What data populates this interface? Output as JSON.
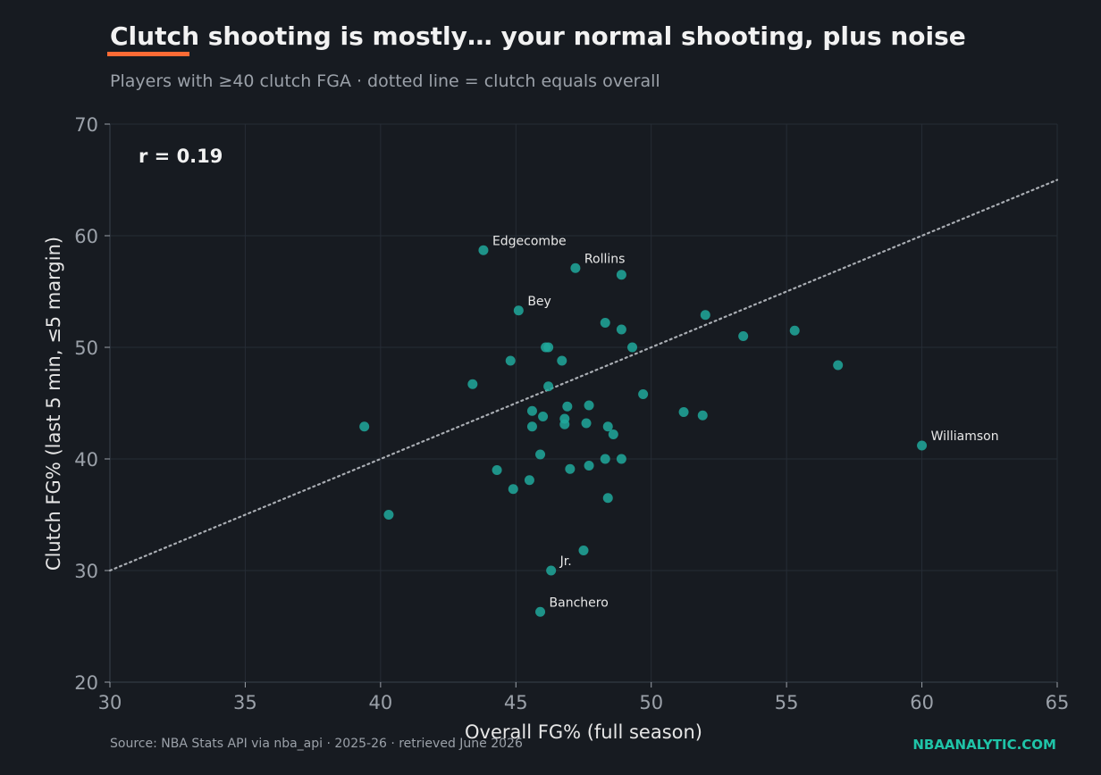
{
  "header": {
    "title": "Clutch shooting is mostly… your normal shooting, plus noise",
    "subtitle": "Players with ≥40 clutch FGA · dotted line = clutch equals overall"
  },
  "footer": {
    "source": "Source: NBA Stats API via nba_api · 2025-26 · retrieved June 2026",
    "brand": "NBAANALYTIC.COM"
  },
  "colors": {
    "background": "#171b21",
    "point": "#20a89b",
    "accent": "#ff6b35",
    "brand": "#1fc4a8",
    "grid": "#262c35",
    "reference_line": "#a9adb3"
  },
  "chart_data": {
    "type": "scatter",
    "xlabel": "Overall FG% (full season)",
    "ylabel": "Clutch FG% (last 5 min, ≤5 margin)",
    "xlim": [
      30,
      65
    ],
    "ylim": [
      20,
      70
    ],
    "xticks": [
      30,
      35,
      40,
      45,
      50,
      55,
      60,
      65
    ],
    "yticks": [
      20,
      30,
      40,
      50,
      60,
      70
    ],
    "grid": true,
    "annotation": "r = 0.19",
    "reference_line": {
      "from": [
        30,
        30
      ],
      "to": [
        65,
        65
      ]
    },
    "points": [
      {
        "x": 43.8,
        "y": 58.7,
        "label": "Edgecombe"
      },
      {
        "x": 47.2,
        "y": 57.1,
        "label": "Rollins"
      },
      {
        "x": 48.9,
        "y": 56.5
      },
      {
        "x": 45.1,
        "y": 53.3,
        "label": "Bey"
      },
      {
        "x": 48.3,
        "y": 52.2
      },
      {
        "x": 52.0,
        "y": 52.9
      },
      {
        "x": 48.9,
        "y": 51.6
      },
      {
        "x": 53.4,
        "y": 51.0
      },
      {
        "x": 55.3,
        "y": 51.5
      },
      {
        "x": 46.1,
        "y": 50.0
      },
      {
        "x": 46.2,
        "y": 50.0
      },
      {
        "x": 49.3,
        "y": 50.0
      },
      {
        "x": 44.8,
        "y": 48.8
      },
      {
        "x": 46.7,
        "y": 48.8
      },
      {
        "x": 56.9,
        "y": 48.4
      },
      {
        "x": 43.4,
        "y": 46.7
      },
      {
        "x": 46.2,
        "y": 46.5
      },
      {
        "x": 49.7,
        "y": 45.8
      },
      {
        "x": 46.9,
        "y": 44.7
      },
      {
        "x": 47.7,
        "y": 44.8
      },
      {
        "x": 45.6,
        "y": 44.3
      },
      {
        "x": 46.0,
        "y": 43.8
      },
      {
        "x": 51.2,
        "y": 44.2
      },
      {
        "x": 51.9,
        "y": 43.9
      },
      {
        "x": 46.8,
        "y": 43.6
      },
      {
        "x": 46.8,
        "y": 43.1
      },
      {
        "x": 47.6,
        "y": 43.2
      },
      {
        "x": 45.6,
        "y": 42.9
      },
      {
        "x": 48.4,
        "y": 42.9
      },
      {
        "x": 39.4,
        "y": 42.9
      },
      {
        "x": 48.6,
        "y": 42.2
      },
      {
        "x": 60.0,
        "y": 41.2,
        "label": "Williamson"
      },
      {
        "x": 45.9,
        "y": 40.4
      },
      {
        "x": 48.3,
        "y": 40.0
      },
      {
        "x": 48.9,
        "y": 40.0
      },
      {
        "x": 47.7,
        "y": 39.4
      },
      {
        "x": 44.3,
        "y": 39.0
      },
      {
        "x": 47.0,
        "y": 39.1
      },
      {
        "x": 45.5,
        "y": 38.1
      },
      {
        "x": 44.9,
        "y": 37.3
      },
      {
        "x": 48.4,
        "y": 36.5
      },
      {
        "x": 40.3,
        "y": 35.0
      },
      {
        "x": 47.5,
        "y": 31.8
      },
      {
        "x": 46.3,
        "y": 30.0,
        "label": "Jr."
      },
      {
        "x": 45.9,
        "y": 26.3,
        "label": "Banchero"
      }
    ]
  }
}
